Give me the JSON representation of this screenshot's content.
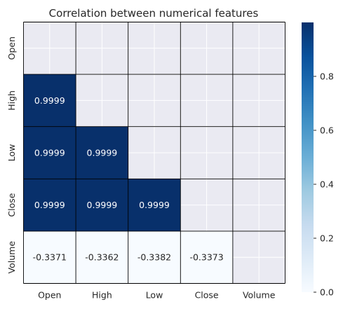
{
  "chart_data": {
    "type": "heatmap",
    "title": "Correlation between numerical features",
    "xlabels": [
      "Open",
      "High",
      "Low",
      "Close",
      "Volume"
    ],
    "ylabels": [
      "Open",
      "High",
      "Low",
      "Close",
      "Volume"
    ],
    "mask": "upper-triangle-and-diagonal",
    "matrix": [
      [
        null,
        null,
        null,
        null,
        null
      ],
      [
        0.9999,
        null,
        null,
        null,
        null
      ],
      [
        0.9999,
        0.9999,
        null,
        null,
        null
      ],
      [
        0.9999,
        0.9999,
        0.9999,
        null,
        null
      ],
      [
        -0.3371,
        -0.3362,
        -0.3382,
        -0.3373,
        null
      ]
    ],
    "annotations": [
      [
        null,
        null,
        null,
        null,
        null
      ],
      [
        "0.9999",
        null,
        null,
        null,
        null
      ],
      [
        "0.9999",
        "0.9999",
        null,
        null,
        null
      ],
      [
        "0.9999",
        "0.9999",
        "0.9999",
        null,
        null
      ],
      [
        "-0.3371",
        "-0.3362",
        "-0.3382",
        "-0.3373",
        null
      ]
    ],
    "colormap": "Blues",
    "colorbar": {
      "vmin": 0.0,
      "vmax": 0.9999,
      "ticks": [
        0.0,
        0.2,
        0.4,
        0.6,
        0.8
      ],
      "tick_labels": [
        "0.0",
        "0.2",
        "0.4",
        "0.6",
        "0.8"
      ]
    },
    "colors": {
      "masked_background": "#eaeaf2",
      "grid": "#ffffff",
      "cell_border": "#000000",
      "text_on_dark": "#ffffff",
      "text_on_light": "#262626",
      "axis_text": "#262626"
    }
  }
}
